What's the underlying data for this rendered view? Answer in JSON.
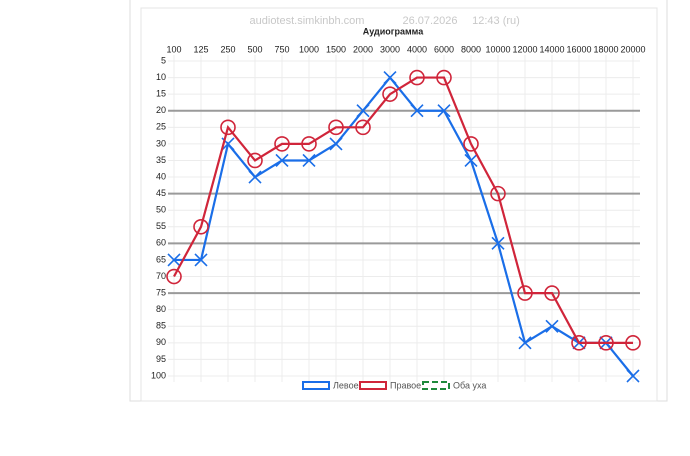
{
  "chart_data": {
    "type": "line",
    "source": "audiotest.simkinbh.com",
    "date": "26.07.2026",
    "time": "12:43 (ru)",
    "title": "Аудиограмма",
    "categories": [
      "100",
      "125",
      "250",
      "500",
      "750",
      "1000",
      "1500",
      "2000",
      "3000",
      "4000",
      "6000",
      "8000",
      "10000",
      "12000",
      "14000",
      "16000",
      "18000",
      "20000"
    ],
    "series": [
      {
        "name": "Левое",
        "color": "#1a6ee8",
        "marker": "x",
        "values": [
          65,
          65,
          30,
          40,
          35,
          35,
          30,
          20,
          10,
          20,
          20,
          35,
          60,
          90,
          85,
          90,
          90,
          100
        ]
      },
      {
        "name": "Правое",
        "color": "#d0253a",
        "marker": "circle",
        "values": [
          70,
          55,
          25,
          35,
          30,
          30,
          25,
          25,
          15,
          10,
          10,
          30,
          45,
          75,
          75,
          90,
          90,
          90
        ]
      },
      {
        "name": "Оба уха",
        "color": "#1e8a3c",
        "marker": "none",
        "dashed": true,
        "values": [
          null,
          null,
          null,
          null,
          null,
          null,
          null,
          null,
          null,
          null,
          null,
          null,
          null,
          null,
          null,
          null,
          null,
          null
        ]
      }
    ],
    "ylim": [
      5,
      100
    ],
    "y_reversed": true,
    "yticks": [
      5,
      10,
      15,
      20,
      25,
      30,
      35,
      40,
      45,
      50,
      55,
      60,
      65,
      70,
      75,
      80,
      85,
      90,
      95,
      100
    ],
    "emphasis_lines": [
      20,
      45,
      60,
      75
    ],
    "grid": true
  }
}
